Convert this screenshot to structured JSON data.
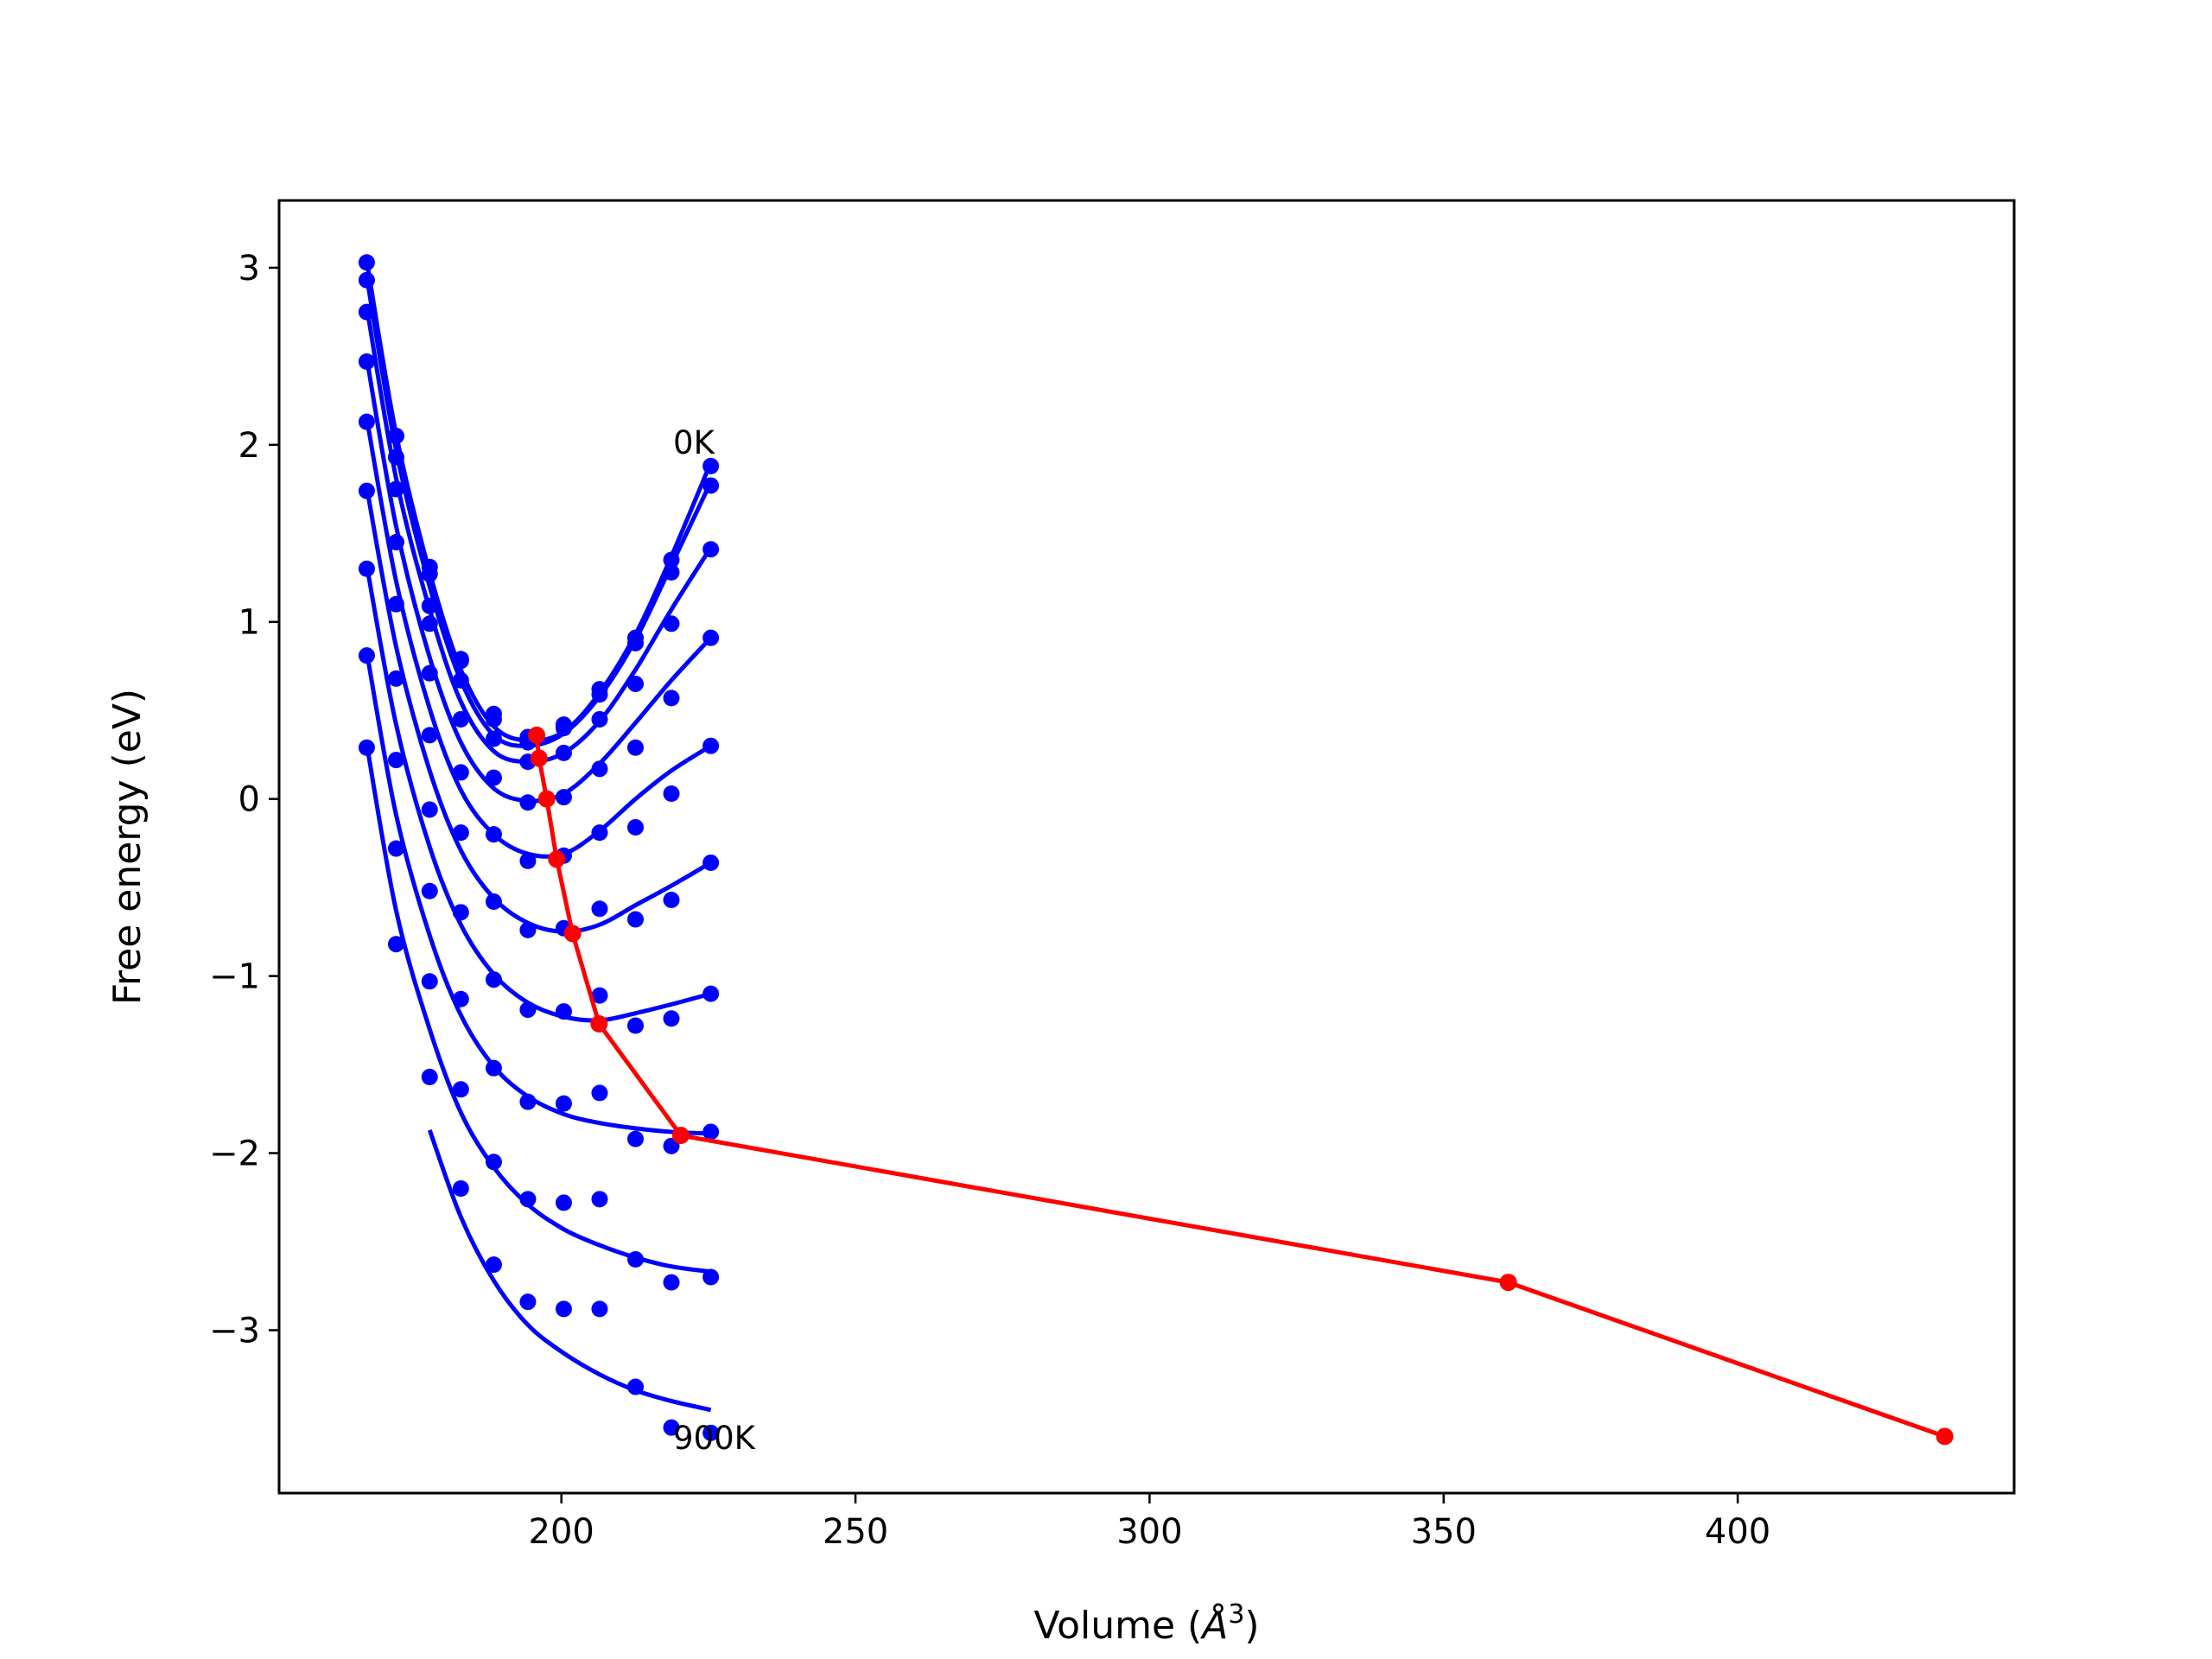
{
  "chart_data": {
    "type": "scatter",
    "title": "",
    "xlabel_main": "Volume (",
    "xlabel_sym": "Å",
    "xlabel_sup": "3",
    "xlabel_close": ")",
    "ylabel": "Free energy (eV)",
    "xlim": [
      152,
      447
    ],
    "ylim": [
      -3.92,
      3.38
    ],
    "xticks": [
      {
        "value": 200,
        "label": "200"
      },
      {
        "value": 250,
        "label": "250"
      },
      {
        "value": 300,
        "label": "300"
      },
      {
        "value": 350,
        "label": "350"
      },
      {
        "value": 400,
        "label": "400"
      }
    ],
    "yticks": [
      {
        "value": 3,
        "label": "3"
      },
      {
        "value": 2,
        "label": "2"
      },
      {
        "value": 1,
        "label": "1"
      },
      {
        "value": 0,
        "label": "0"
      },
      {
        "value": -1,
        "label": "−1"
      },
      {
        "value": -2,
        "label": "−2"
      },
      {
        "value": -3,
        "label": "−3"
      }
    ],
    "grid": false,
    "legend": "none",
    "colors": {
      "isotherms": "#0000ff",
      "minimum_path": "#ff0000"
    },
    "annotations": [
      {
        "text": "0K",
        "x": 219,
        "y": 1.95
      },
      {
        "text": "900K",
        "x": 219,
        "y": -3.67
      }
    ],
    "volumes": [
      166.9,
      171.9,
      177.6,
      182.9,
      188.5,
      194.3,
      200.4,
      206.5,
      212.6,
      218.7,
      225.4
    ],
    "isotherms": [
      {
        "points": [
          3.03,
          2.05,
          1.31,
          0.79,
          0.48,
          0.35,
          0.4,
          0.62,
          0.91,
          1.35,
          1.88
        ],
        "fit": [
          3.04,
          2.06,
          1.28,
          0.73,
          0.41,
          0.33,
          0.38,
          0.6,
          0.93,
          1.37,
          1.9
        ]
      },
      {
        "points": [
          2.93,
          1.93,
          1.27,
          0.78,
          0.45,
          0.32,
          0.42,
          0.59,
          0.88,
          1.28,
          1.77
        ],
        "fit": [
          2.95,
          1.97,
          1.2,
          0.67,
          0.36,
          0.3,
          0.37,
          0.58,
          0.9,
          1.32,
          1.79
        ]
      },
      {
        "points": [
          2.75,
          1.75,
          1.09,
          0.67,
          0.34,
          0.21,
          0.26,
          0.45,
          0.65,
          0.99,
          1.41
        ],
        "fit": [
          2.78,
          1.81,
          1.07,
          0.55,
          0.27,
          0.21,
          0.26,
          0.44,
          0.73,
          1.07,
          1.42
        ]
      },
      {
        "points": [
          2.47,
          1.45,
          0.99,
          0.45,
          0.12,
          -0.02,
          0.01,
          0.17,
          0.29,
          0.57,
          0.91
        ],
        "fit": [
          2.49,
          1.54,
          0.8,
          0.32,
          0.06,
          -0.01,
          0.03,
          0.2,
          0.43,
          0.67,
          0.91
        ]
      },
      {
        "points": [
          2.13,
          1.1,
          0.71,
          0.15,
          -0.2,
          -0.35,
          -0.32,
          -0.19,
          -0.16,
          0.03,
          0.3
        ],
        "fit": [
          2.15,
          1.23,
          0.51,
          0.05,
          -0.2,
          -0.31,
          -0.31,
          -0.18,
          0.0,
          0.16,
          0.3
        ]
      },
      {
        "points": [
          1.74,
          0.68,
          0.36,
          -0.19,
          -0.58,
          -0.74,
          -0.73,
          -0.62,
          -0.68,
          -0.57,
          -0.36
        ],
        "fit": [
          1.76,
          0.86,
          0.16,
          -0.29,
          -0.56,
          -0.7,
          -0.75,
          -0.71,
          -0.6,
          -0.49,
          -0.36
        ]
      },
      {
        "points": [
          1.3,
          0.22,
          -0.06,
          -0.64,
          -1.02,
          -1.19,
          -1.2,
          -1.11,
          -1.28,
          -1.24,
          -1.1
        ],
        "fit": [
          1.32,
          0.42,
          -0.27,
          -0.71,
          -0.99,
          -1.15,
          -1.23,
          -1.25,
          -1.21,
          -1.16,
          -1.1
        ]
      },
      {
        "points": [
          0.81,
          -0.28,
          -0.52,
          -1.13,
          -1.52,
          -1.71,
          -1.72,
          -1.66,
          -1.92,
          -1.96,
          -1.88
        ],
        "fit": [
          0.83,
          -0.09,
          -0.77,
          -1.22,
          -1.51,
          -1.68,
          -1.78,
          -1.83,
          -1.86,
          -1.88,
          -1.89
        ]
      },
      {
        "points": [
          0.29,
          -0.82,
          -1.03,
          -1.64,
          -2.05,
          -2.26,
          -2.28,
          -2.26,
          -2.6,
          -2.73,
          -2.7
        ],
        "fit": [
          0.31,
          -0.63,
          -1.3,
          -1.77,
          -2.08,
          -2.29,
          -2.43,
          -2.52,
          -2.59,
          -2.64,
          -2.67
        ]
      },
      {
        "points": [
          null,
          null,
          -1.57,
          -2.2,
          -2.63,
          -2.84,
          -2.88,
          -2.88,
          -3.32,
          -3.55,
          -3.58
        ],
        "fit": [
          null,
          null,
          -1.87,
          -2.36,
          -2.72,
          -2.97,
          -3.13,
          -3.25,
          -3.34,
          -3.4,
          -3.45
        ]
      }
    ],
    "minimum_path": {
      "x": [
        195.8,
        196.2,
        197.5,
        199.2,
        201.9,
        206.4,
        220.3,
        361.0,
        435.2
      ],
      "y": [
        0.36,
        0.23,
        0.0,
        -0.34,
        -0.76,
        -1.27,
        -1.9,
        -2.73,
        -3.6
      ]
    }
  }
}
